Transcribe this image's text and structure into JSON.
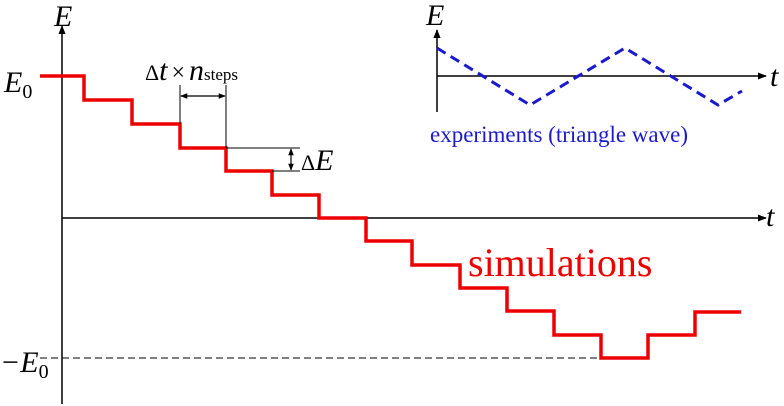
{
  "main_plot": {
    "y_axis_label": "E",
    "x_axis_label": "t",
    "y_tick_top_main": "E",
    "y_tick_top_sub": "0",
    "y_tick_bottom_main": "−E",
    "y_tick_bottom_sub": "0",
    "step_width_label_delta": "Δ",
    "step_width_label_t": "t",
    "step_width_label_times": "×",
    "step_width_label_n": "n",
    "step_width_label_sub": "steps",
    "step_height_label_delta": "Δ",
    "step_height_label_E": "E",
    "series_label": "simulations",
    "series_color": "#ee0000"
  },
  "inset": {
    "y_axis_label": "E",
    "x_axis_label": "t",
    "series_label": "experiments (triangle wave)",
    "series_color": "#1a1acc"
  }
}
